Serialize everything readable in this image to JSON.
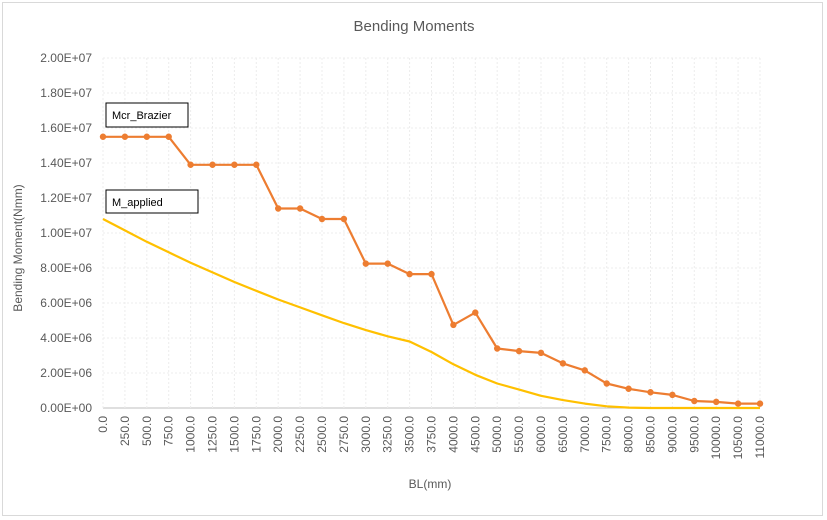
{
  "chart_data": {
    "type": "line",
    "title": "Bending Moments",
    "xlabel": "BL(mm)",
    "ylabel": "Bending Moment(Nmm)",
    "ylim": [
      0,
      20000000
    ],
    "y_ticks": [
      "0.00E+00",
      "2.00E+06",
      "4.00E+06",
      "6.00E+06",
      "8.00E+06",
      "1.00E+07",
      "1.20E+07",
      "1.40E+07",
      "1.60E+07",
      "1.80E+07",
      "2.00E+07"
    ],
    "categories": [
      "0.0",
      "250.0",
      "500.0",
      "750.0",
      "1000.0",
      "1250.0",
      "1500.0",
      "1750.0",
      "2000.0",
      "2250.0",
      "2500.0",
      "2750.0",
      "3000.0",
      "3250.0",
      "3500.0",
      "3750.0",
      "4000.0",
      "4500.0",
      "5000.0",
      "5500.0",
      "6000.0",
      "6500.0",
      "7000.0",
      "7500.0",
      "8000.0",
      "8500.0",
      "9000.0",
      "9500.0",
      "10000.0",
      "10500.0",
      "11000.0"
    ],
    "grid": true,
    "series": [
      {
        "name": "Mcr_Brazier",
        "color": "#ed7d31",
        "markers": true,
        "values": [
          15500000,
          15500000,
          15500000,
          15500000,
          13900000,
          13900000,
          13900000,
          13900000,
          11400000,
          11400000,
          10800000,
          10800000,
          8250000,
          8250000,
          7650000,
          7650000,
          4750000,
          5450000,
          3400000,
          3250000,
          3150000,
          2550000,
          2150000,
          1400000,
          1100000,
          900000,
          750000,
          400000,
          350000,
          250000,
          250000
        ]
      },
      {
        "name": "M_applied",
        "color": "#ffc000",
        "markers": false,
        "values": [
          10800000,
          10150000,
          9500000,
          8900000,
          8300000,
          7750000,
          7200000,
          6700000,
          6200000,
          5750000,
          5300000,
          4850000,
          4450000,
          4100000,
          3800000,
          3200000,
          2500000,
          1900000,
          1400000,
          1050000,
          700000,
          450000,
          250000,
          100000,
          20000,
          0,
          0,
          0,
          0,
          0,
          0
        ]
      }
    ]
  }
}
